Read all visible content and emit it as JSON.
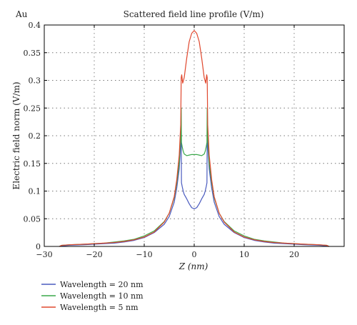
{
  "corner_label": "Au",
  "chart_data": {
    "type": "line",
    "title": "Scattered field line profile (V/m)",
    "xlabel": "Z (nm)",
    "ylabel": "Electric field norm (V/m)",
    "xlim": [
      -30,
      30
    ],
    "ylim": [
      0,
      0.4
    ],
    "xticks": [
      -30,
      -20,
      -10,
      0,
      10,
      20
    ],
    "yticks": [
      0,
      0.05,
      0.1,
      0.15,
      0.2,
      0.25,
      0.3,
      0.35,
      0.4
    ],
    "grid": true,
    "legend_position": "bottom-left, below plot",
    "series": [
      {
        "name": "Wavelength = 20 nm",
        "color": "#4a5bbf",
        "x": [
          -27,
          -26.5,
          -25,
          -22,
          -20,
          -18,
          -16,
          -14,
          -12,
          -10,
          -8,
          -6,
          -5,
          -4,
          -3.5,
          -3,
          -2.6,
          -2.55,
          -2.4,
          -2.2,
          -2,
          -1.5,
          -1,
          -0.5,
          0,
          0.5,
          1,
          1.5,
          2,
          2.2,
          2.4,
          2.55,
          2.6,
          3,
          3.5,
          4,
          5,
          6,
          8,
          10,
          12,
          14,
          16,
          18,
          20,
          22,
          25,
          26.5,
          27
        ],
        "y": [
          0,
          0.001,
          0.002,
          0.003,
          0.004,
          0.005,
          0.006,
          0.008,
          0.011,
          0.016,
          0.025,
          0.04,
          0.054,
          0.08,
          0.105,
          0.14,
          0.2,
          0.115,
          0.108,
          0.1,
          0.094,
          0.086,
          0.077,
          0.07,
          0.068,
          0.07,
          0.077,
          0.086,
          0.094,
          0.1,
          0.108,
          0.115,
          0.2,
          0.14,
          0.105,
          0.08,
          0.054,
          0.04,
          0.025,
          0.016,
          0.011,
          0.008,
          0.006,
          0.005,
          0.004,
          0.003,
          0.002,
          0.001,
          0
        ]
      },
      {
        "name": "Wavelength = 10 nm",
        "color": "#3aa84a",
        "x": [
          -27,
          -26.5,
          -25,
          -22,
          -20,
          -18,
          -16,
          -14,
          -12,
          -10,
          -8,
          -6,
          -5,
          -4,
          -3.5,
          -3,
          -2.7,
          -2.6,
          -2.55,
          -2.4,
          -2.2,
          -2,
          -1.5,
          -1,
          -0.5,
          0,
          0.5,
          1,
          1.5,
          2,
          2.2,
          2.4,
          2.55,
          2.6,
          2.7,
          3,
          3.5,
          4,
          5,
          6,
          8,
          10,
          12,
          14,
          16,
          18,
          20,
          22,
          25,
          26.5,
          27
        ],
        "y": [
          0,
          0.002,
          0.003,
          0.004,
          0.005,
          0.006,
          0.008,
          0.01,
          0.013,
          0.019,
          0.028,
          0.045,
          0.06,
          0.088,
          0.115,
          0.15,
          0.2,
          0.25,
          0.188,
          0.18,
          0.172,
          0.167,
          0.164,
          0.165,
          0.166,
          0.166,
          0.166,
          0.165,
          0.164,
          0.167,
          0.172,
          0.18,
          0.188,
          0.25,
          0.2,
          0.15,
          0.115,
          0.088,
          0.06,
          0.045,
          0.028,
          0.019,
          0.013,
          0.01,
          0.008,
          0.006,
          0.005,
          0.004,
          0.003,
          0.002,
          0
        ]
      },
      {
        "name": "Wavelength = 5 nm",
        "color": "#e0482e",
        "x": [
          -27,
          -26.5,
          -25,
          -22,
          -20,
          -18,
          -16,
          -14,
          -12,
          -10,
          -8,
          -6,
          -5,
          -4,
          -3.5,
          -3,
          -2.7,
          -2.6,
          -2.5,
          -2.3,
          -2,
          -1.5,
          -1,
          -0.5,
          0,
          0.5,
          1,
          1.5,
          2,
          2.3,
          2.5,
          2.6,
          2.7,
          3,
          3.5,
          4,
          5,
          6,
          8,
          10,
          12,
          14,
          16,
          18,
          20,
          22,
          25,
          26.5,
          27
        ],
        "y": [
          0,
          0.002,
          0.003,
          0.004,
          0.005,
          0.006,
          0.007,
          0.009,
          0.012,
          0.017,
          0.026,
          0.044,
          0.06,
          0.09,
          0.12,
          0.165,
          0.22,
          0.305,
          0.31,
          0.295,
          0.305,
          0.34,
          0.37,
          0.385,
          0.39,
          0.385,
          0.37,
          0.34,
          0.305,
          0.295,
          0.31,
          0.305,
          0.22,
          0.165,
          0.12,
          0.09,
          0.06,
          0.044,
          0.026,
          0.017,
          0.012,
          0.009,
          0.007,
          0.006,
          0.005,
          0.004,
          0.003,
          0.002,
          0
        ]
      }
    ]
  }
}
